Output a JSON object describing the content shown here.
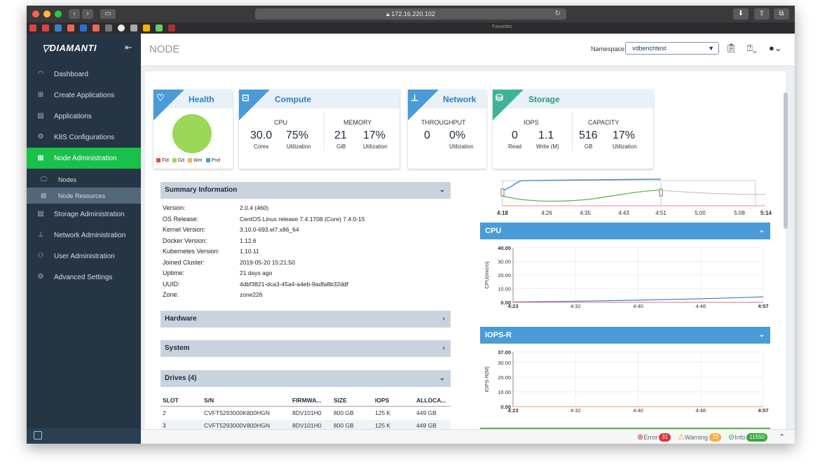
{
  "browser": {
    "url": "172.16.220.102",
    "favorites_label": "Favorites"
  },
  "sidebar": {
    "logo": "DIAMANTI",
    "items": [
      {
        "label": "Dashboard",
        "icon": "gauge-icon"
      },
      {
        "label": "Create Applications",
        "icon": "plus-square-icon"
      },
      {
        "label": "Applications",
        "icon": "list-icon"
      },
      {
        "label": "K8S Configurations",
        "icon": "gear-icon"
      },
      {
        "label": "Node Administration",
        "icon": "server-icon",
        "active": true
      },
      {
        "label": "Storage Administration",
        "icon": "database-icon"
      },
      {
        "label": "Network Administration",
        "icon": "network-icon"
      },
      {
        "label": "User Administration",
        "icon": "users-icon"
      },
      {
        "label": "Advanced Settings",
        "icon": "cogs-icon"
      }
    ],
    "subitems": [
      {
        "label": "Nodes"
      },
      {
        "label": "Node Resources"
      }
    ]
  },
  "header": {
    "title": "NODE",
    "namespace_label": "Namespace",
    "namespace_value": "vdbenchtest"
  },
  "cards": {
    "health": {
      "title": "Health",
      "legend": [
        "Fld",
        "Gd",
        "Wm",
        "Pnd"
      ],
      "legend_colors": [
        "#e84a4a",
        "#9bd85a",
        "#f0b060",
        "#4a9bd8"
      ]
    },
    "compute": {
      "title": "Compute",
      "cpu_label": "CPU",
      "cpu_cores": "30.0",
      "cores_label": "Cores",
      "cpu_util": "75%",
      "util_label": "Utilization",
      "mem_label": "MEMORY",
      "mem_gib": "21",
      "gib_label": "GiB",
      "mem_util": "17%",
      "mem_util_label": "Utilization"
    },
    "network": {
      "title": "Network",
      "label": "THROUGHPUT",
      "value": "0",
      "util": "0%",
      "util_label": "Utilization"
    },
    "storage": {
      "title": "Storage",
      "iops_label": "IOPS",
      "read": "0",
      "read_label": "Read",
      "write": "1.1",
      "write_label": "Write (M)",
      "cap_label": "CAPACITY",
      "cap_gb": "516",
      "gb_label": "GB",
      "cap_util": "17%",
      "cap_util_label": "Utilization"
    }
  },
  "summary": {
    "title": "Summary Information",
    "rows": [
      {
        "k": "Version:",
        "v": "2.0.4 (460)"
      },
      {
        "k": "OS Release:",
        "v": "CentOS Linux release 7.4.1708 (Core) 7.4.0-15"
      },
      {
        "k": "Kernel Version:",
        "v": "3.10.0-693.el7.x86_64"
      },
      {
        "k": "Docker Version:",
        "v": "1.12.6"
      },
      {
        "k": "Kubernetes Version:",
        "v": "1.10.11"
      },
      {
        "k": "Joined Cluster:",
        "v": "2019-05-20 15:21:50"
      },
      {
        "k": "Uptime:",
        "v": "21 days ago"
      },
      {
        "k": "UUID:",
        "v": "4dbf3821-dca3-45a4-a4eb-9adfa8b32ddf"
      },
      {
        "k": "Zone:",
        "v": "zone226"
      }
    ]
  },
  "sections": {
    "hardware": "Hardware",
    "system": "System",
    "drives": "Drives (4)"
  },
  "drives": {
    "columns": [
      "SLOT",
      "S/N",
      "FIRMWA...",
      "SIZE",
      "IOPS",
      "ALLOCA..."
    ],
    "rows": [
      [
        "2",
        "CVFT5293000K800HGN",
        "8DV101H0",
        "800 GB",
        "125 K",
        "449 GB"
      ],
      [
        "3",
        "CVFT5293000V800HGN",
        "8DV101H0",
        "800 GB",
        "125 K",
        "449 GB"
      ]
    ]
  },
  "timeline": {
    "ticks": [
      "4:18",
      "4:26",
      "4:35",
      "4:43",
      "4:51",
      "5:00",
      "5:08",
      "5:14"
    ]
  },
  "chart_data": [
    {
      "type": "line",
      "title": "CPU",
      "ylabel": "CPU(micro)",
      "ylim": [
        0,
        40
      ],
      "yticks": [
        "40.00",
        "30.00",
        "20.00",
        "10.00",
        "0.00"
      ],
      "xticks": [
        "4:23",
        "4:32",
        "4:40",
        "4:48",
        "4:57"
      ],
      "series": [
        {
          "name": "",
          "color": "#3a7fc8",
          "x": [
            0,
            1,
            2,
            3,
            4
          ],
          "values": [
            0.3,
            0.8,
            1.6,
            2.6,
            4.0
          ]
        },
        {
          "name": "",
          "color": "#e88a9a",
          "x": [
            0,
            1,
            2,
            3,
            4
          ],
          "values": [
            0,
            0,
            0,
            0,
            0
          ]
        }
      ]
    },
    {
      "type": "line",
      "title": "IOPS-R",
      "ylabel": "IOPS-R(M)",
      "ylim": [
        0,
        37
      ],
      "yticks": [
        "37.00",
        "30.00",
        "20.00",
        "10.00",
        "0.00"
      ],
      "xticks": [
        "4:23",
        "4:32",
        "4:40",
        "4:48",
        "4:57"
      ],
      "series": [
        {
          "name": "",
          "color": "#f0b060",
          "x": [
            0,
            1,
            2,
            3,
            4
          ],
          "values": [
            0,
            0,
            0,
            0,
            0
          ]
        }
      ]
    }
  ],
  "status": {
    "error_label": "Error",
    "error_count": "31",
    "warning_label": "Warning",
    "warning_count": "73",
    "info_label": "Info",
    "info_count": "11550"
  }
}
